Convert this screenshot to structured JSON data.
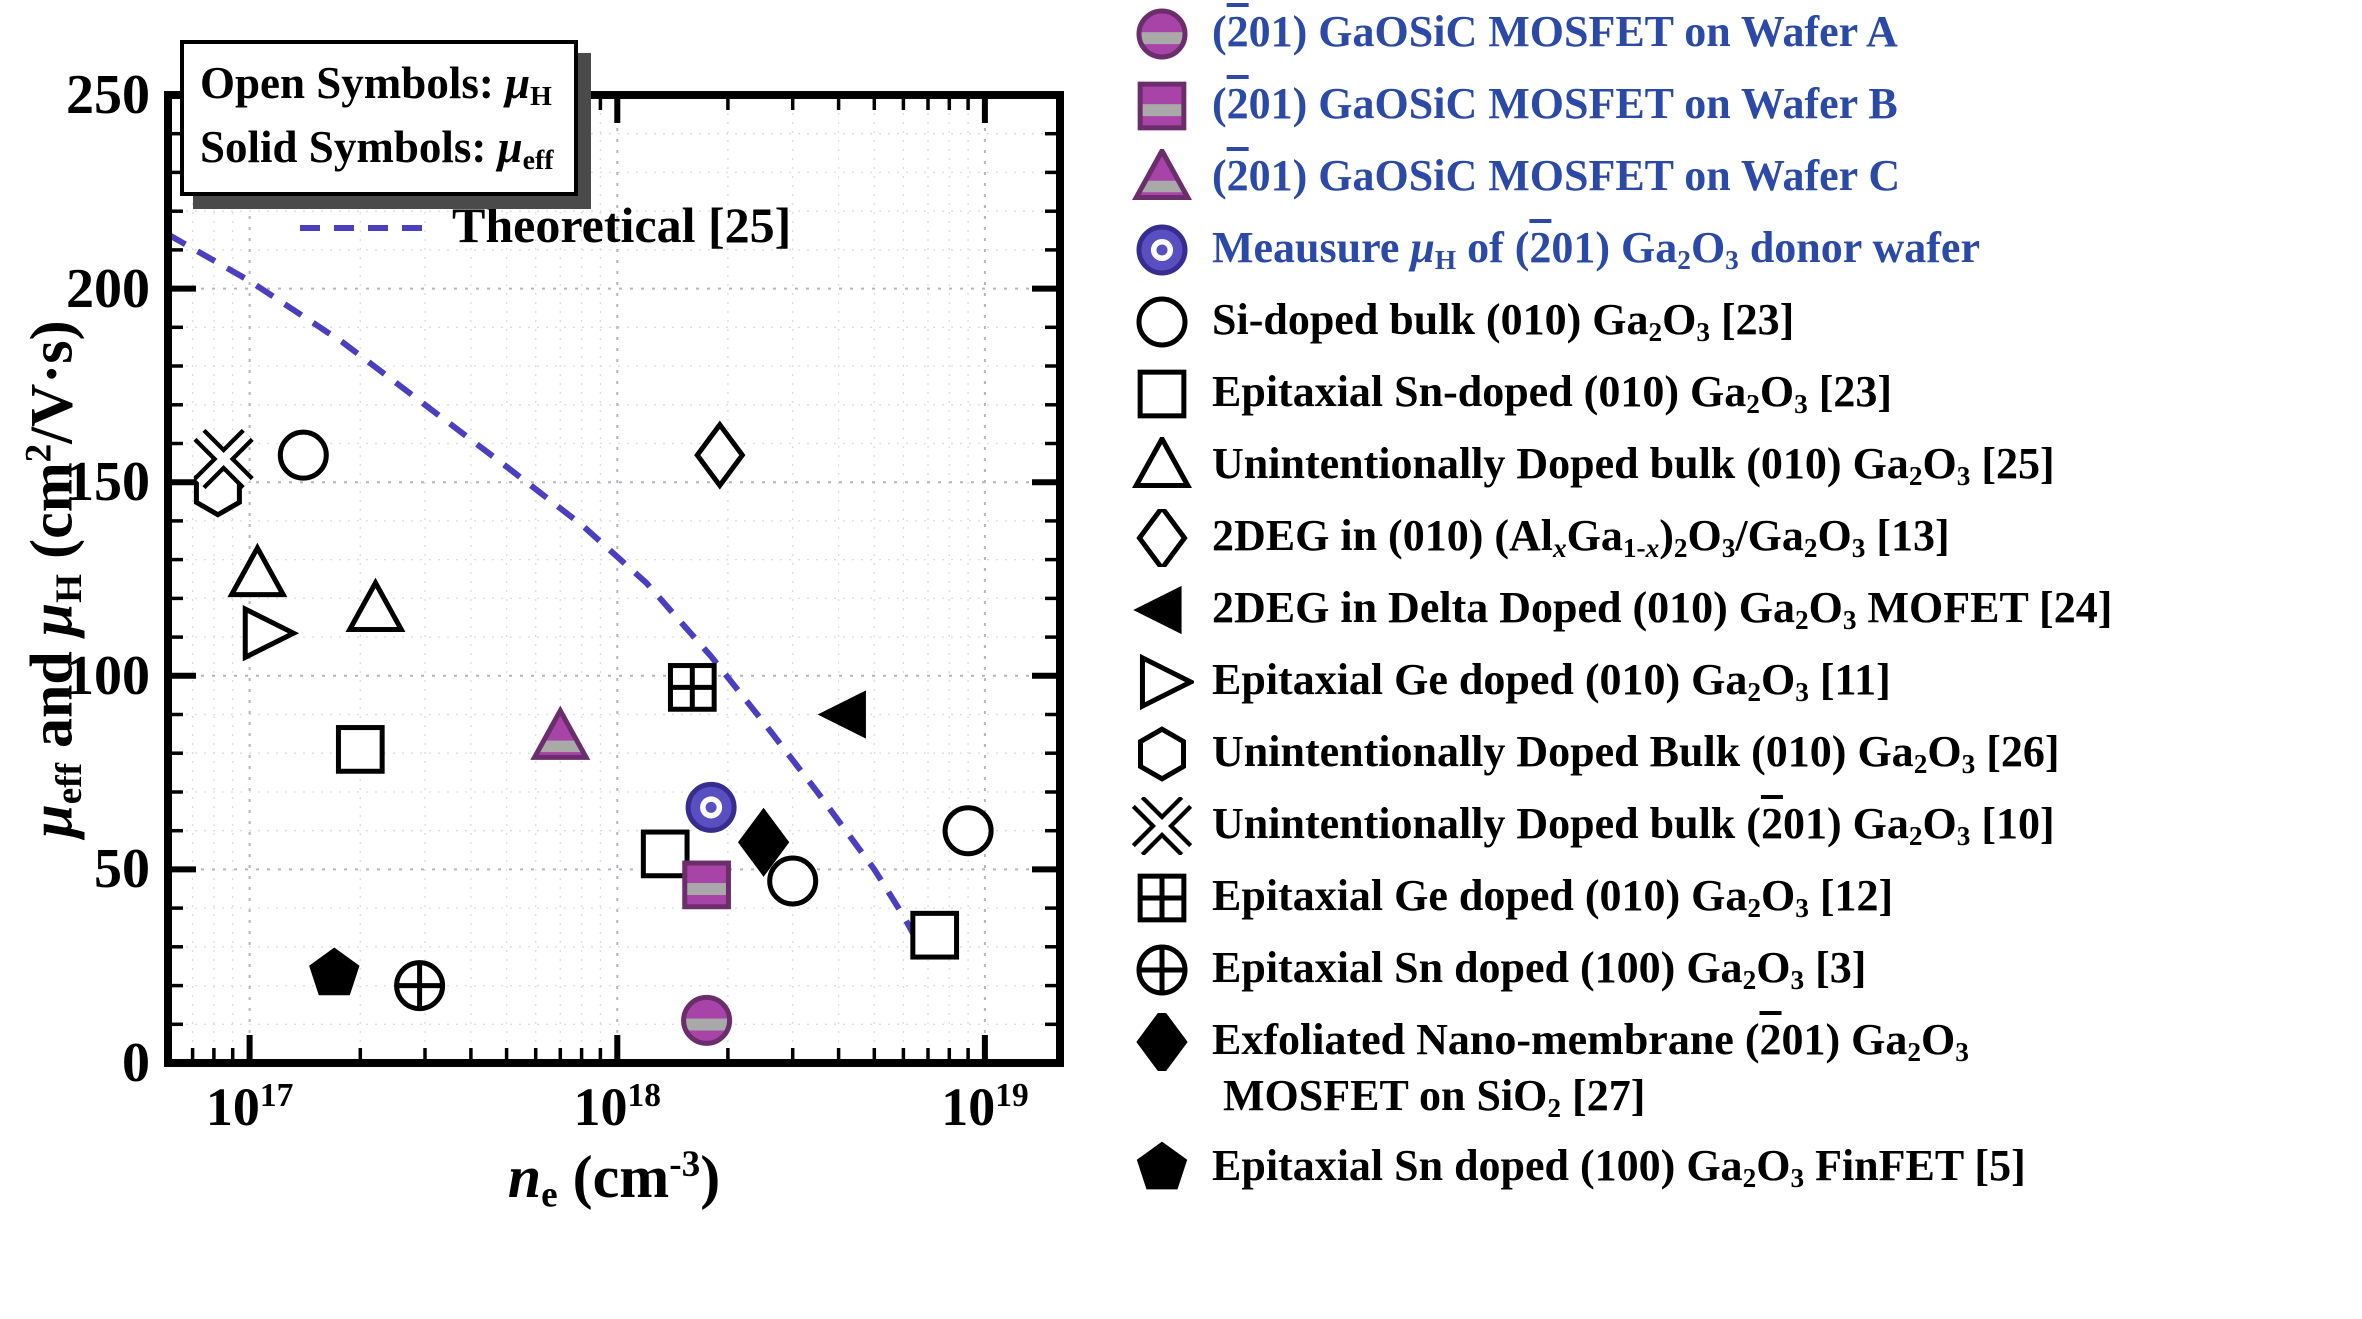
{
  "figure": {
    "annotation_box": {
      "line1_html": "Open Symbols: <i>μ</i><sub>H</sub>",
      "line2_html": "Solid Symbols: <i>μ</i><sub>eff</sub>"
    }
  },
  "chart_data": {
    "type": "scatter",
    "x_axis": {
      "title_html": "<i>n</i><sub>e</sub> (cm<sup>-3</sup>)",
      "scale": "log",
      "range": [
        6e+16,
        1.6e+19
      ],
      "ticks": [
        {
          "value": 1e+17,
          "label_html": "10<sup>17</sup>"
        },
        {
          "value": 1e+18,
          "label_html": "10<sup>18</sup>"
        },
        {
          "value": 1e+19,
          "label_html": "10<sup>19</sup>"
        }
      ]
    },
    "y_axis": {
      "title_html": "<i>μ</i><sub>eff</sub> and <i>μ</i><sub>H</sub> (cm<sup>2</sup>/V·s)",
      "range": [
        0,
        250
      ],
      "ticks": [
        {
          "value": 0,
          "label": "0"
        },
        {
          "value": 50,
          "label": "50"
        },
        {
          "value": 100,
          "label": "100"
        },
        {
          "value": 150,
          "label": "150"
        },
        {
          "value": 200,
          "label": "200"
        },
        {
          "value": 250,
          "label": "250"
        }
      ]
    },
    "grid": {
      "major": true,
      "minor": true
    },
    "theoretical_curve": {
      "label_html": "Theoretical [25]",
      "points": [
        [
          6e+16,
          214
        ],
        [
          1e+17,
          202
        ],
        [
          1.8e+17,
          186
        ],
        [
          3e+17,
          170
        ],
        [
          5e+17,
          154
        ],
        [
          8e+17,
          139
        ],
        [
          1.2e+18,
          124
        ],
        [
          1.8e+18,
          105
        ],
        [
          2.5e+18,
          88
        ],
        [
          3.5e+18,
          70
        ],
        [
          5e+18,
          50
        ],
        [
          6e+18,
          38
        ],
        [
          6.5e+18,
          32
        ]
      ]
    },
    "series": [
      {
        "id": "si-doped-bulk",
        "marker": "circle-open",
        "points": [
          [
            1.4e+17,
            157
          ],
          [
            3e+18,
            47
          ],
          [
            9e+18,
            60
          ]
        ]
      },
      {
        "id": "sn-doped-epitaxial",
        "marker": "square-open",
        "points": [
          [
            2e+17,
            81
          ],
          [
            1.35e+18,
            54
          ],
          [
            7.3e+18,
            33
          ]
        ]
      },
      {
        "id": "uid-bulk-010",
        "marker": "triangle-up-open",
        "points": [
          [
            1.05e+17,
            126
          ],
          [
            2.2e+17,
            117
          ]
        ]
      },
      {
        "id": "2deg-algao",
        "marker": "diamond-open",
        "points": [
          [
            1.9e+18,
            157
          ]
        ]
      },
      {
        "id": "ge-doped-010",
        "marker": "triangle-right-open",
        "points": [
          [
            1.1e+17,
            111
          ]
        ]
      },
      {
        "id": "uid-bulk-010-hex",
        "marker": "hexagon-open",
        "points": [
          [
            8.2e+16,
            148
          ]
        ]
      },
      {
        "id": "uid-bulk-201",
        "marker": "x-cross",
        "points": [
          [
            8.5e+16,
            156
          ]
        ]
      },
      {
        "id": "ge-doped-012",
        "marker": "square-plus",
        "points": [
          [
            1.6e+18,
            97
          ]
        ]
      },
      {
        "id": "sn-doped-100",
        "marker": "circle-plus",
        "points": [
          [
            2.9e+17,
            20
          ]
        ]
      },
      {
        "id": "2deg-delta-doped",
        "marker": "triangle-left-solid",
        "points": [
          [
            4.2e+18,
            90
          ]
        ]
      },
      {
        "id": "exfoliated-nano-membrane",
        "marker": "diamond-solid",
        "points": [
          [
            2.5e+18,
            57
          ]
        ]
      },
      {
        "id": "finfet",
        "marker": "pentagon-solid",
        "points": [
          [
            1.7e+17,
            23
          ]
        ]
      },
      {
        "id": "wafer-c",
        "marker": "triangle-banded",
        "points": [
          [
            7e+17,
            84
          ]
        ]
      },
      {
        "id": "wafer-b",
        "marker": "square-banded",
        "points": [
          [
            1.75e+18,
            46
          ]
        ]
      },
      {
        "id": "donor-wafer",
        "marker": "circle-bullseye",
        "points": [
          [
            1.8e+18,
            66
          ]
        ]
      },
      {
        "id": "wafer-a",
        "marker": "circle-banded",
        "points": [
          [
            1.75e+18,
            11
          ]
        ]
      }
    ],
    "colors": {
      "purple": "#a844a8",
      "purple_dark": "#6b2d6b",
      "band_gray": "#a9a9a9",
      "blue": "#5a4fc0",
      "blue_dark": "#372c8f",
      "curve": "#4b3fc0",
      "legend_blue": "#2b4aa8",
      "grid_major": "#b4b4c4",
      "grid_minor": "#dcdce4"
    }
  },
  "legend": {
    "entries": [
      {
        "marker": "circle-banded",
        "blue": true,
        "label_html": "(<span class=\"ov\">2</span>01) GaOSiC MOSFET on Wafer A"
      },
      {
        "marker": "square-banded",
        "blue": true,
        "label_html": "(<span class=\"ov\">2</span>01) GaOSiC MOSFET on Wafer B"
      },
      {
        "marker": "triangle-banded",
        "blue": true,
        "label_html": "(<span class=\"ov\">2</span>01) GaOSiC MOSFET on Wafer C"
      },
      {
        "marker": "circle-bullseye",
        "blue": true,
        "label_html": "Meausure <i>μ</i><sub>H</sub> of  (<span class=\"ov\">2</span>01) Ga<sub>2</sub>O<sub>3</sub> donor wafer"
      },
      {
        "marker": "circle-open",
        "blue": false,
        "label_html": "Si-doped bulk (010) Ga<sub>2</sub>O<sub>3</sub> [23]"
      },
      {
        "marker": "square-open",
        "blue": false,
        "label_html": "Epitaxial Sn-doped (010) Ga<sub>2</sub>O<sub>3</sub> [23]"
      },
      {
        "marker": "triangle-up-open",
        "blue": false,
        "label_html": "Unintentionally Doped bulk (010) Ga<sub>2</sub>O<sub>3</sub> [25]"
      },
      {
        "marker": "diamond-open",
        "blue": false,
        "label_html": "2DEG in (010) (Al<sub><i>x</i></sub>Ga<sub>1-<i>x</i></sub>)<sub>2</sub>O<sub>3</sub>/Ga<sub>2</sub>O<sub>3</sub> [13]"
      },
      {
        "marker": "triangle-left-solid",
        "blue": false,
        "label_html": "2DEG in Delta Doped (010) Ga<sub>2</sub>O<sub>3</sub> MOFET [24]"
      },
      {
        "marker": "triangle-right-open",
        "blue": false,
        "label_html": "Epitaxial Ge doped (010) Ga<sub>2</sub>O<sub>3</sub> [11]"
      },
      {
        "marker": "hexagon-open",
        "blue": false,
        "label_html": "Unintentionally Doped Bulk (010) Ga<sub>2</sub>O<sub>3</sub> [26]"
      },
      {
        "marker": "x-cross",
        "blue": false,
        "label_html": "Unintentionally Doped bulk (<span class=\"ov\">2</span>01) Ga<sub>2</sub>O<sub>3</sub> [10]"
      },
      {
        "marker": "square-plus",
        "blue": false,
        "label_html": "Epitaxial Ge doped (010) Ga<sub>2</sub>O<sub>3</sub> [12]"
      },
      {
        "marker": "circle-plus",
        "blue": false,
        "label_html": "Epitaxial Sn doped (100) Ga<sub>2</sub>O<sub>3</sub> [3]"
      },
      {
        "marker": "diamond-solid",
        "blue": false,
        "label_html": "Exfoliated Nano-membrane (<span class=\"ov\">2</span>01) Ga<sub>2</sub>O<sub>3</sub><br>&nbsp;MOSFET on SiO<sub>2</sub> [27]"
      },
      {
        "marker": "pentagon-solid",
        "blue": false,
        "label_html": "Epitaxial Sn doped (100) Ga<sub>2</sub>O<sub>3</sub> FinFET [5]"
      }
    ]
  }
}
